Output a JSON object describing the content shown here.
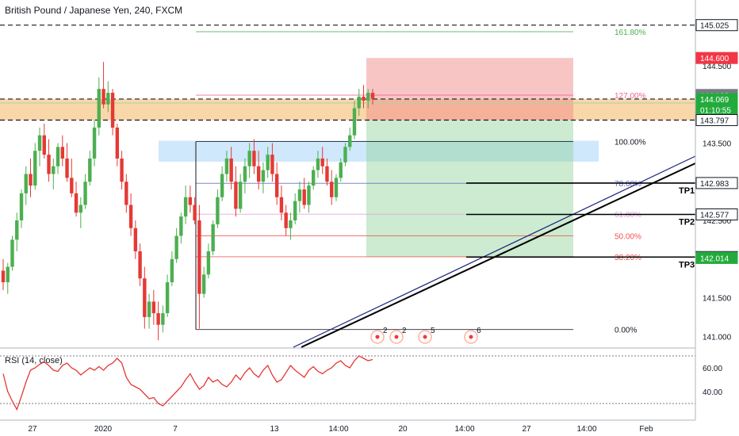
{
  "title": "British Pound / Japanese Yen, 240, FXCM",
  "rsi_title": "RSI (14, close)",
  "colors": {
    "up": "#26a69a",
    "down": "#ef5350",
    "bull_candle": "#4caf50",
    "bear_candle": "#e53935"
  },
  "chart_data": {
    "type": "candlestick",
    "instrument": "GBP/JPY",
    "yticks": [
      "145.000",
      "144.500",
      "143.500",
      "142.500",
      "141.500",
      "141.000"
    ],
    "ytick_values": [
      145.0,
      144.5,
      143.5,
      142.5,
      141.5,
      141.0
    ],
    "ylim": [
      140.86,
      145.35
    ],
    "xticks": [
      "27",
      "2020",
      "7",
      "13",
      "14:00",
      "20",
      "14:00",
      "27",
      "14:00",
      "Feb"
    ],
    "price_tags": [
      {
        "label": "145.025",
        "value": 145.025,
        "color": "#131722"
      },
      {
        "label": "144.600",
        "value": 144.6,
        "color": "#f23645"
      },
      {
        "label": "144.122",
        "value": 144.122,
        "color": "#787b86"
      },
      {
        "label": "144.069",
        "value": 144.069,
        "color": "#22ab3c"
      },
      {
        "label": "01:10:55",
        "value": 143.93,
        "color": "#22ab3c"
      },
      {
        "label": "143.797",
        "value": 143.797,
        "color": "#131722"
      },
      {
        "label": "142.983",
        "value": 142.983,
        "color": "#131722"
      },
      {
        "label": "142.577",
        "value": 142.577,
        "color": "#131722"
      },
      {
        "label": "142.026",
        "value": 142.026,
        "color": "#131722"
      },
      {
        "label": "142.014",
        "value": 142.014,
        "color": "#22ab3c"
      }
    ],
    "fib_levels": [
      {
        "label": "161.80%",
        "value": 144.94,
        "color": "#4caf50"
      },
      {
        "label": "127.00%",
        "value": 144.12,
        "color": "#f06292"
      },
      {
        "label": "100.00%",
        "value": 143.52,
        "color": "#131722"
      },
      {
        "label": "78.60%",
        "value": 142.98,
        "color": "#5c6bc0"
      },
      {
        "label": "61.80%",
        "value": 142.58,
        "color": "#e1a3d8"
      },
      {
        "label": "50.00%",
        "value": 142.3,
        "color": "#ef5350"
      },
      {
        "label": "38.20%",
        "value": 142.03,
        "color": "#ef5350"
      },
      {
        "label": "0.00%",
        "value": 141.09,
        "color": "#131722"
      }
    ],
    "targets": [
      "TP1",
      "TP2",
      "TP3"
    ],
    "events": [
      "2",
      "2",
      "5",
      "6"
    ],
    "rsi": {
      "yticks": [
        "60.00",
        "40.00"
      ],
      "ytick_values": [
        60,
        40
      ],
      "levels": [
        70,
        30
      ]
    },
    "candles": [
      [
        141.85,
        142.0,
        141.6,
        141.7
      ],
      [
        141.7,
        141.95,
        141.55,
        141.9
      ],
      [
        141.9,
        142.3,
        141.85,
        142.25
      ],
      [
        142.25,
        142.6,
        142.1,
        142.5
      ],
      [
        142.5,
        142.9,
        142.4,
        142.85
      ],
      [
        142.85,
        143.2,
        142.7,
        143.1
      ],
      [
        143.1,
        143.3,
        142.8,
        142.95
      ],
      [
        142.95,
        143.5,
        142.9,
        143.4
      ],
      [
        143.4,
        143.7,
        143.2,
        143.6
      ],
      [
        143.6,
        143.75,
        143.3,
        143.35
      ],
      [
        143.35,
        143.55,
        143.0,
        143.1
      ],
      [
        143.1,
        143.3,
        142.9,
        143.2
      ],
      [
        143.2,
        143.5,
        143.1,
        143.45
      ],
      [
        143.45,
        143.6,
        143.2,
        143.3
      ],
      [
        143.3,
        143.5,
        143.0,
        143.05
      ],
      [
        143.05,
        143.3,
        142.8,
        142.85
      ],
      [
        142.85,
        143.0,
        142.55,
        142.6
      ],
      [
        142.6,
        142.8,
        142.4,
        142.7
      ],
      [
        142.7,
        143.1,
        142.65,
        143.0
      ],
      [
        143.0,
        143.4,
        142.95,
        143.3
      ],
      [
        143.3,
        143.8,
        143.2,
        143.7
      ],
      [
        143.7,
        144.35,
        143.6,
        144.2
      ],
      [
        144.2,
        144.55,
        143.95,
        144.0
      ],
      [
        144.0,
        144.3,
        143.9,
        144.15
      ],
      [
        144.15,
        144.2,
        143.6,
        143.7
      ],
      [
        143.7,
        143.75,
        143.2,
        143.3
      ],
      [
        143.3,
        143.4,
        142.9,
        143.0
      ],
      [
        143.0,
        143.1,
        142.6,
        142.7
      ],
      [
        142.7,
        142.85,
        142.3,
        142.4
      ],
      [
        142.4,
        142.5,
        142.0,
        142.1
      ],
      [
        142.1,
        142.2,
        141.65,
        141.75
      ],
      [
        141.75,
        141.9,
        141.1,
        141.25
      ],
      [
        141.25,
        141.55,
        141.1,
        141.45
      ],
      [
        141.45,
        141.6,
        141.15,
        141.3
      ],
      [
        141.3,
        141.45,
        140.95,
        141.15
      ],
      [
        141.15,
        141.4,
        141.05,
        141.3
      ],
      [
        141.3,
        141.8,
        141.25,
        141.7
      ],
      [
        141.7,
        142.1,
        141.65,
        142.0
      ],
      [
        142.0,
        142.4,
        141.95,
        142.3
      ],
      [
        142.3,
        142.6,
        142.2,
        142.55
      ],
      [
        142.55,
        142.95,
        142.45,
        142.8
      ],
      [
        142.8,
        142.95,
        142.6,
        142.7
      ],
      [
        142.7,
        142.8,
        142.45,
        142.5
      ],
      [
        142.5,
        142.7,
        141.1,
        141.55
      ],
      [
        141.55,
        141.9,
        141.5,
        141.8
      ],
      [
        141.8,
        142.2,
        141.75,
        142.1
      ],
      [
        142.1,
        142.5,
        142.05,
        142.45
      ],
      [
        142.45,
        142.9,
        142.4,
        142.8
      ],
      [
        142.8,
        143.2,
        142.75,
        143.1
      ],
      [
        143.1,
        143.4,
        143.0,
        143.3
      ],
      [
        143.3,
        143.45,
        142.9,
        143.0
      ],
      [
        143.0,
        143.2,
        142.55,
        142.65
      ],
      [
        142.65,
        143.1,
        142.6,
        143.0
      ],
      [
        143.0,
        143.3,
        142.85,
        143.2
      ],
      [
        143.2,
        143.5,
        143.05,
        143.4
      ],
      [
        143.4,
        143.55,
        143.1,
        143.2
      ],
      [
        143.2,
        143.4,
        142.9,
        143.0
      ],
      [
        143.0,
        143.25,
        142.85,
        143.15
      ],
      [
        143.15,
        143.45,
        143.05,
        143.35
      ],
      [
        143.35,
        143.5,
        143.0,
        143.1
      ],
      [
        143.1,
        143.25,
        142.7,
        142.8
      ],
      [
        142.8,
        142.95,
        142.5,
        142.6
      ],
      [
        142.6,
        142.7,
        142.3,
        142.4
      ],
      [
        142.4,
        142.6,
        142.25,
        142.5
      ],
      [
        142.5,
        142.85,
        142.45,
        142.75
      ],
      [
        142.75,
        143.0,
        142.6,
        142.9
      ],
      [
        142.9,
        143.05,
        142.65,
        142.7
      ],
      [
        142.7,
        143.0,
        142.6,
        142.95
      ],
      [
        142.95,
        143.2,
        142.9,
        143.15
      ],
      [
        143.15,
        143.4,
        143.05,
        143.3
      ],
      [
        143.3,
        143.45,
        143.1,
        143.2
      ],
      [
        143.2,
        143.3,
        142.95,
        143.0
      ],
      [
        143.0,
        143.15,
        142.7,
        142.8
      ],
      [
        142.8,
        143.1,
        142.75,
        143.05
      ],
      [
        143.05,
        143.3,
        143.0,
        143.25
      ],
      [
        143.25,
        143.5,
        143.2,
        143.45
      ],
      [
        143.45,
        143.7,
        143.4,
        143.6
      ],
      [
        143.6,
        144.05,
        143.55,
        143.95
      ],
      [
        143.95,
        144.2,
        143.85,
        144.1
      ],
      [
        144.1,
        144.25,
        143.95,
        144.05
      ],
      [
        144.05,
        144.2,
        143.95,
        144.15
      ],
      [
        144.15,
        144.2,
        144.0,
        144.07
      ]
    ],
    "rsi_values": [
      55,
      40,
      32,
      25,
      36,
      48,
      58,
      60,
      63,
      65,
      62,
      58,
      57,
      62,
      64,
      60,
      58,
      54,
      57,
      60,
      58,
      61,
      58,
      62,
      64,
      68,
      64,
      52,
      46,
      44,
      42,
      38,
      34,
      35,
      30,
      28,
      32,
      36,
      40,
      44,
      50,
      55,
      48,
      42,
      45,
      52,
      48,
      50,
      46,
      44,
      48,
      54,
      50,
      56,
      60,
      55,
      52,
      58,
      62,
      54,
      48,
      50,
      56,
      62,
      58,
      55,
      52,
      58,
      61,
      57,
      55,
      58,
      60,
      64,
      66,
      62,
      60,
      66,
      70,
      68,
      66,
      67
    ]
  },
  "trade": {
    "entry": 143.797,
    "stop": 144.6,
    "target": 142.026
  }
}
